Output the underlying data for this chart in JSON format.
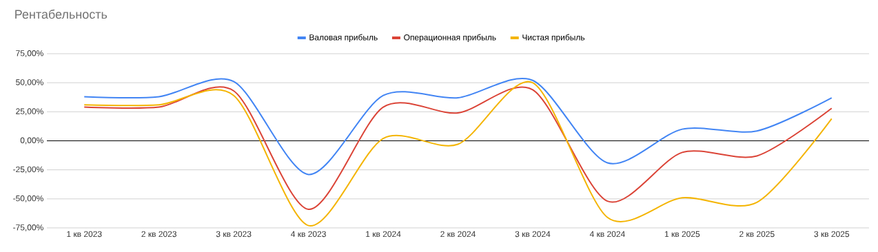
{
  "chart_data": {
    "type": "line",
    "title": "Рентабельность",
    "categories": [
      "1 кв 2023",
      "2 кв 2023",
      "3 кв 2023",
      "4 кв 2023",
      "1 кв 2024",
      "2 кв 2024",
      "3 кв 2024",
      "4 кв 2024",
      "1 кв 2025",
      "2 кв 2025",
      "3 кв 2025"
    ],
    "series": [
      {
        "name": "Валовая прибыль",
        "color": "#4285f4",
        "values": [
          38,
          38,
          51,
          -29,
          39,
          37,
          52,
          -19,
          10,
          8.5,
          37
        ]
      },
      {
        "name": "Операционная прибыль",
        "color": "#db4437",
        "values": [
          29,
          29,
          43,
          -59,
          29,
          24,
          44,
          -52,
          -10,
          -13,
          28
        ]
      },
      {
        "name": "Чистая прибыль",
        "color": "#f4b400",
        "values": [
          31,
          31,
          39,
          -73,
          2,
          -3,
          50,
          -66,
          -49,
          -53,
          19
        ]
      }
    ],
    "ylim": [
      -75,
      75
    ],
    "yticks": [
      {
        "value": -75,
        "label": "-75,00%"
      },
      {
        "value": -50,
        "label": "-50,00%"
      },
      {
        "value": -25,
        "label": "-25,00%"
      },
      {
        "value": 0,
        "label": "0,00%"
      },
      {
        "value": 25,
        "label": "25,00%"
      },
      {
        "value": 50,
        "label": "50,00%"
      },
      {
        "value": 75,
        "label": "75,00%"
      }
    ],
    "grid": "y",
    "legend": "top"
  }
}
